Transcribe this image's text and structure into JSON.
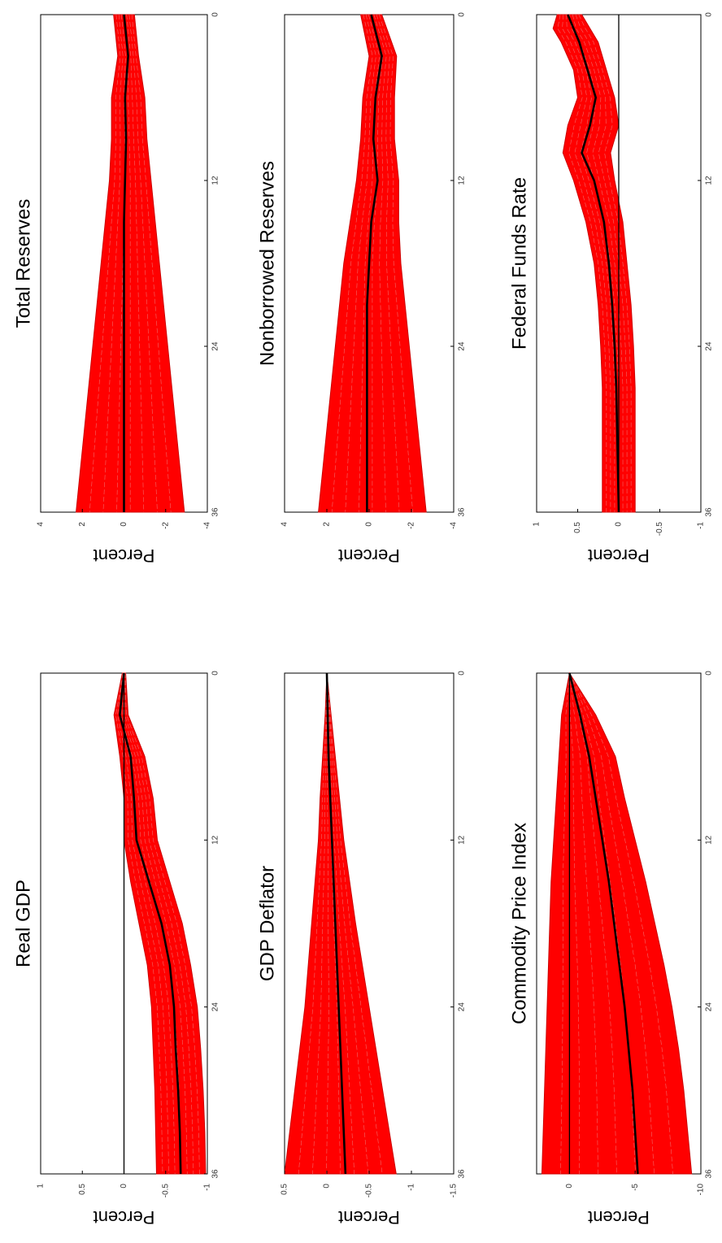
{
  "figure": {
    "orientation": "rotated-90-ccw",
    "layout": "3 rows x 2 columns (landscape)"
  },
  "colors": {
    "band": "#ff0000",
    "band_lines": "#cc0000",
    "median": "#000000",
    "zero": "#000000",
    "axes": "#000000",
    "background": "#ffffff"
  },
  "chart_data": [
    {
      "type": "line",
      "title": "Real GDP",
      "ylabel": "Percent",
      "xlabel": "",
      "xticks": [
        "0",
        "12",
        "24",
        "36"
      ],
      "yticks": [
        "1",
        "0.5",
        "0",
        "-0.5",
        "-1"
      ],
      "xlim": [
        0,
        36
      ],
      "ylim": [
        -1,
        1
      ],
      "grid": false,
      "x": [
        0,
        3,
        6,
        9,
        12,
        15,
        18,
        21,
        24,
        27,
        30,
        33,
        36
      ],
      "series": [
        {
          "role": "band_upper",
          "values": [
            0.02,
            0.12,
            0.05,
            0.0,
            0.0,
            -0.08,
            -0.18,
            -0.28,
            -0.33,
            -0.35,
            -0.37,
            -0.38,
            -0.39
          ]
        },
        {
          "role": "median",
          "values": [
            0.0,
            0.05,
            -0.08,
            -0.12,
            -0.15,
            -0.3,
            -0.45,
            -0.55,
            -0.6,
            -0.62,
            -0.65,
            -0.67,
            -0.68
          ]
        },
        {
          "role": "band_lower",
          "values": [
            -0.02,
            -0.05,
            -0.25,
            -0.35,
            -0.4,
            -0.55,
            -0.7,
            -0.8,
            -0.88,
            -0.92,
            -0.95,
            -0.97,
            -0.98
          ]
        },
        {
          "role": "zero_line",
          "values": [
            0,
            0,
            0,
            0,
            0,
            0,
            0,
            0,
            0,
            0,
            0,
            0,
            0
          ]
        }
      ]
    },
    {
      "type": "line",
      "title": "Total Reserves",
      "ylabel": "Percent",
      "xlabel": "",
      "xticks": [
        "0",
        "12",
        "24",
        "36"
      ],
      "yticks": [
        "4",
        "2",
        "0",
        "-2",
        "-4"
      ],
      "xlim": [
        0,
        36
      ],
      "ylim": [
        -4,
        4
      ],
      "grid": false,
      "x": [
        0,
        3,
        6,
        9,
        12,
        15,
        18,
        21,
        24,
        27,
        30,
        33,
        36
      ],
      "series": [
        {
          "role": "band_upper",
          "values": [
            0.5,
            0.3,
            0.6,
            0.6,
            0.7,
            0.9,
            1.1,
            1.3,
            1.5,
            1.7,
            1.9,
            2.1,
            2.3
          ]
        },
        {
          "role": "median",
          "values": [
            0.0,
            -0.2,
            -0.05,
            -0.1,
            -0.05,
            0.0,
            0.0,
            0.0,
            0.0,
            0.0,
            0.0,
            0.0,
            0.0
          ]
        },
        {
          "role": "band_lower",
          "values": [
            -0.5,
            -0.7,
            -1.0,
            -1.1,
            -1.3,
            -1.5,
            -1.7,
            -1.9,
            -2.1,
            -2.3,
            -2.5,
            -2.7,
            -2.9
          ]
        }
      ]
    },
    {
      "type": "line",
      "title": "GDP Deflator",
      "ylabel": "Percent",
      "xlabel": "",
      "xticks": [
        "0",
        "12",
        "24",
        "36"
      ],
      "yticks": [
        "0.5",
        "0",
        "-0.5",
        "-1",
        "-1.5"
      ],
      "xlim": [
        0,
        36
      ],
      "ylim": [
        -1.5,
        0.5
      ],
      "grid": false,
      "x": [
        0,
        3,
        6,
        9,
        12,
        15,
        18,
        21,
        24,
        27,
        30,
        33,
        36
      ],
      "series": [
        {
          "role": "band_upper",
          "values": [
            0.0,
            0.02,
            0.05,
            0.08,
            0.1,
            0.14,
            0.18,
            0.22,
            0.26,
            0.32,
            0.38,
            0.44,
            0.5
          ]
        },
        {
          "role": "median",
          "values": [
            0.0,
            -0.01,
            -0.02,
            -0.04,
            -0.06,
            -0.08,
            -0.1,
            -0.12,
            -0.14,
            -0.16,
            -0.18,
            -0.2,
            -0.22
          ]
        },
        {
          "role": "band_lower",
          "values": [
            0.0,
            -0.05,
            -0.1,
            -0.15,
            -0.2,
            -0.27,
            -0.34,
            -0.42,
            -0.5,
            -0.58,
            -0.66,
            -0.74,
            -0.82
          ]
        }
      ]
    },
    {
      "type": "line",
      "title": "Nonborrowed Reserves",
      "ylabel": "Percent",
      "xlabel": "",
      "xticks": [
        "0",
        "12",
        "24",
        "36"
      ],
      "yticks": [
        "4",
        "2",
        "0",
        "-2",
        "-4"
      ],
      "xlim": [
        0,
        36
      ],
      "ylim": [
        -4,
        4
      ],
      "grid": false,
      "x": [
        0,
        3,
        6,
        9,
        12,
        15,
        18,
        21,
        24,
        27,
        30,
        33,
        36
      ],
      "series": [
        {
          "role": "band_upper",
          "values": [
            0.4,
            0.0,
            0.3,
            0.4,
            0.6,
            0.9,
            1.2,
            1.4,
            1.6,
            1.8,
            2.0,
            2.2,
            2.4
          ]
        },
        {
          "role": "median",
          "values": [
            -0.1,
            -0.6,
            -0.3,
            -0.2,
            -0.4,
            -0.1,
            0.0,
            0.1,
            0.1,
            0.1,
            0.1,
            0.1,
            0.1
          ]
        },
        {
          "role": "band_lower",
          "values": [
            -0.6,
            -1.3,
            -1.2,
            -1.2,
            -1.4,
            -1.4,
            -1.5,
            -1.7,
            -1.9,
            -2.1,
            -2.3,
            -2.5,
            -2.7
          ]
        }
      ]
    },
    {
      "type": "line",
      "title": "Commodity Price Index",
      "ylabel": "Percent",
      "xlabel": "",
      "xticks": [
        "0",
        "12",
        "24",
        "36"
      ],
      "yticks": [
        "0",
        "-5",
        "-10"
      ],
      "xlim": [
        0,
        36
      ],
      "ylim": [
        -10,
        2.5
      ],
      "grid": false,
      "x": [
        0,
        3,
        6,
        9,
        12,
        15,
        18,
        21,
        24,
        27,
        30,
        33,
        36
      ],
      "series": [
        {
          "role": "band_upper",
          "values": [
            0.0,
            0.6,
            0.8,
            1.0,
            1.2,
            1.4,
            1.5,
            1.6,
            1.7,
            1.8,
            1.9,
            2.0,
            2.1
          ]
        },
        {
          "role": "median",
          "values": [
            0.0,
            -0.8,
            -1.5,
            -2.0,
            -2.5,
            -3.0,
            -3.4,
            -3.8,
            -4.2,
            -4.5,
            -4.8,
            -5.0,
            -5.2
          ]
        },
        {
          "role": "band_lower",
          "values": [
            0.0,
            -2.0,
            -3.5,
            -4.2,
            -5.0,
            -5.8,
            -6.5,
            -7.2,
            -7.8,
            -8.3,
            -8.7,
            -9.0,
            -9.3
          ]
        },
        {
          "role": "zero_line",
          "values": [
            0,
            0,
            0,
            0,
            0,
            0,
            0,
            0,
            0,
            0,
            0,
            0,
            0
          ]
        }
      ]
    },
    {
      "type": "line",
      "title": "Federal Funds Rate",
      "ylabel": "Percent",
      "xlabel": "",
      "xticks": [
        "0",
        "12",
        "24",
        "36"
      ],
      "yticks": [
        "1",
        "0.5",
        "0",
        "-0.5",
        "-1"
      ],
      "xlim": [
        0,
        36
      ],
      "ylim": [
        -1,
        1
      ],
      "grid": false,
      "x": [
        0,
        1,
        2,
        4,
        6,
        8,
        10,
        12,
        15,
        18,
        21,
        24,
        27,
        30,
        33,
        36
      ],
      "series": [
        {
          "role": "band_upper",
          "values": [
            0.75,
            0.8,
            0.7,
            0.55,
            0.5,
            0.62,
            0.68,
            0.55,
            0.4,
            0.3,
            0.25,
            0.22,
            0.2,
            0.2,
            0.2,
            0.2
          ]
        },
        {
          "role": "median",
          "values": [
            0.62,
            0.55,
            0.48,
            0.38,
            0.28,
            0.35,
            0.45,
            0.3,
            0.18,
            0.12,
            0.08,
            0.05,
            0.03,
            0.02,
            0.01,
            0.0
          ]
        },
        {
          "role": "band_lower",
          "values": [
            0.45,
            0.35,
            0.25,
            0.15,
            0.05,
            0.0,
            0.1,
            0.05,
            -0.05,
            -0.1,
            -0.15,
            -0.18,
            -0.2,
            -0.2,
            -0.2,
            -0.2
          ]
        },
        {
          "role": "zero_line",
          "values": [
            0,
            0,
            0,
            0,
            0,
            0,
            0,
            0,
            0,
            0,
            0,
            0,
            0,
            0,
            0,
            0
          ]
        }
      ]
    }
  ]
}
